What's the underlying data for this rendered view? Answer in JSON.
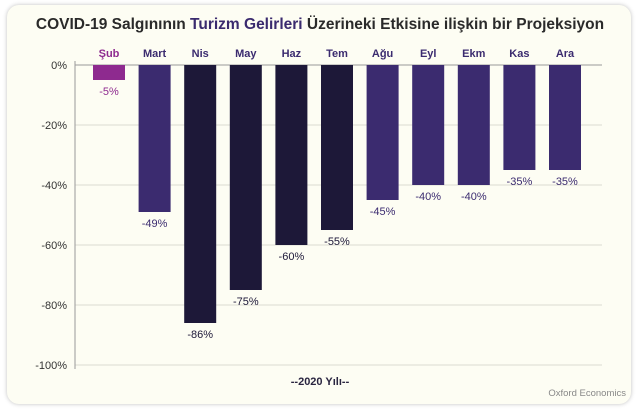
{
  "chart_data": {
    "type": "bar",
    "title_parts": [
      "COVID-19 Salgınının ",
      "Turizm Gelirleri",
      " Üzerineki Etkisine ilişkin bir Projeksiyon"
    ],
    "xlabel": "--2020 Yılı--",
    "ylabel": "",
    "categories": [
      "Şub",
      "Mart",
      "Nis",
      "May",
      "Haz",
      "Tem",
      "Ağu",
      "Eyl",
      "Ekm",
      "Kas",
      "Ara"
    ],
    "values": [
      -5,
      -49,
      -86,
      -75,
      -60,
      -55,
      -45,
      -40,
      -40,
      -35,
      -35
    ],
    "data_labels": [
      "-5%",
      "-49%",
      "-86%",
      "-75%",
      "-60%",
      "-55%",
      "-45%",
      "-40%",
      "-40%",
      "-35%",
      "-35%"
    ],
    "colors": [
      "#8e2a8f",
      "#3b2b6f",
      "#1d1838",
      "#1d1838",
      "#1d1838",
      "#1d1838",
      "#3b2b6f",
      "#3b2b6f",
      "#3b2b6f",
      "#3b2b6f",
      "#3b2b6f"
    ],
    "yticks": [
      0,
      -20,
      -40,
      -60,
      -80,
      -100
    ],
    "ytick_labels": [
      "0%",
      "-20%",
      "-40%",
      "-60%",
      "-80%",
      "-100%"
    ],
    "ylim": [
      -100,
      0
    ],
    "grid": true,
    "category_position": "top"
  },
  "source": "Oxford Economics"
}
